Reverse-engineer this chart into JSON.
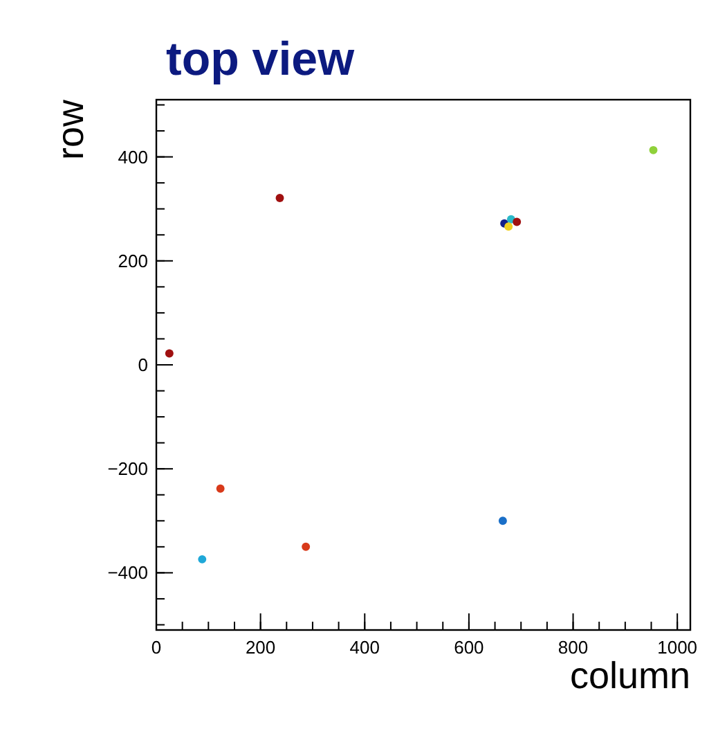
{
  "chart_data": {
    "type": "scatter",
    "title": "top view",
    "xlabel": "column",
    "ylabel": "row",
    "x": [
      954,
      237,
      25,
      123,
      88,
      287,
      665,
      668,
      681,
      676,
      692
    ],
    "values": [
      413,
      321,
      22,
      -238,
      -374,
      -350,
      -300,
      272,
      280,
      266,
      275
    ],
    "colors": [
      "#8fd13a",
      "#a01010",
      "#a01010",
      "#d83a1a",
      "#1fa8d8",
      "#d83a1a",
      "#1a6fc8",
      "#14208a",
      "#2ab8c8",
      "#f0d020",
      "#a01010"
    ],
    "xlim": [
      0,
      1025
    ],
    "xticks": [
      0,
      200,
      400,
      600,
      800,
      1000
    ],
    "ylim": [
      -510,
      510
    ],
    "yticks": [
      -400,
      -200,
      0,
      200,
      400
    ],
    "marker": "circle"
  }
}
